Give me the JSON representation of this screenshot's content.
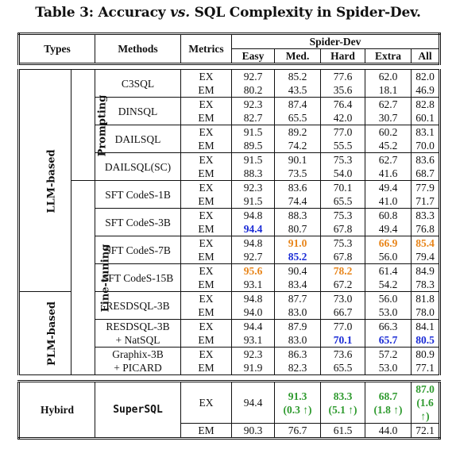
{
  "title": {
    "pre": "Table 3: Accuracy ",
    "vs": "vs.",
    "post": " SQL Complexity in Spider-Dev."
  },
  "header": {
    "types": "Types",
    "methods": "Methods",
    "metrics": "Metrics",
    "group": "Spider-Dev",
    "cols": [
      "Easy",
      "Med.",
      "Hard",
      "Extra",
      "All"
    ]
  },
  "groups": {
    "llm": "LLM-based",
    "prompting": "Prompting",
    "finetuning": "Fine-tuning",
    "plm": "PLM-based",
    "hybird": "Hybird"
  },
  "methods": {
    "c3sql": "C3SQL",
    "dinsql": "DINSQL",
    "dailsql": "DAILSQL",
    "dailsqlsc": "DAILSQL(SC)",
    "codes1b": "SFT CodeS-1B",
    "codes3b": "SFT CodeS-3B",
    "codes7b": "SFT CodeS-7B",
    "codes15b": "SFT CodeS-15B",
    "resdsql": "RESDSQL-3B",
    "resdsqlnat_1": "RESDSQL-3B",
    "resdsqlnat_2": "+ NatSQL",
    "graphix_1": "Graphix-3B",
    "graphix_2": "+ PICARD",
    "supersql": "SuperSQL"
  },
  "metric": {
    "ex": "EX",
    "em": "EM"
  },
  "rows": {
    "c3sql_ex": [
      "92.7",
      "85.2",
      "77.6",
      "62.0",
      "82.0"
    ],
    "c3sql_em": [
      "80.2",
      "43.5",
      "35.6",
      "18.1",
      "46.9"
    ],
    "dinsql_ex": [
      "92.3",
      "87.4",
      "76.4",
      "62.7",
      "82.8"
    ],
    "dinsql_em": [
      "82.7",
      "65.5",
      "42.0",
      "30.7",
      "60.1"
    ],
    "dailsql_ex": [
      "91.5",
      "89.2",
      "77.0",
      "60.2",
      "83.1"
    ],
    "dailsql_em": [
      "89.5",
      "74.2",
      "55.5",
      "45.2",
      "70.0"
    ],
    "dailsqlsc_ex": [
      "91.5",
      "90.1",
      "75.3",
      "62.7",
      "83.6"
    ],
    "dailsqlsc_em": [
      "88.3",
      "73.5",
      "54.0",
      "41.6",
      "68.7"
    ],
    "codes1b_ex": [
      "92.3",
      "83.6",
      "70.1",
      "49.4",
      "77.9"
    ],
    "codes1b_em": [
      "91.5",
      "74.4",
      "65.5",
      "41.0",
      "71.7"
    ],
    "codes3b_ex": [
      "94.8",
      "88.3",
      "75.3",
      "60.8",
      "83.3"
    ],
    "codes3b_em": [
      "94.4",
      "80.7",
      "67.8",
      "49.4",
      "76.8"
    ],
    "codes7b_ex": [
      "94.8",
      "91.0",
      "75.3",
      "66.9",
      "85.4"
    ],
    "codes7b_em": [
      "92.7",
      "85.2",
      "67.8",
      "56.0",
      "79.4"
    ],
    "codes15b_ex": [
      "95.6",
      "90.4",
      "78.2",
      "61.4",
      "84.9"
    ],
    "codes15b_em": [
      "93.1",
      "83.4",
      "67.2",
      "54.2",
      "78.3"
    ],
    "resdsql_ex": [
      "94.8",
      "87.7",
      "73.0",
      "56.0",
      "81.8"
    ],
    "resdsql_em": [
      "94.0",
      "83.0",
      "66.7",
      "53.0",
      "78.0"
    ],
    "resdsqlnat_ex": [
      "94.4",
      "87.9",
      "77.0",
      "66.3",
      "84.1"
    ],
    "resdsqlnat_em": [
      "93.1",
      "83.0",
      "70.1",
      "65.7",
      "80.5"
    ],
    "graphix_ex": [
      "92.3",
      "86.3",
      "73.6",
      "57.2",
      "80.9"
    ],
    "graphix_em": [
      "91.9",
      "82.3",
      "65.5",
      "53.0",
      "77.1"
    ],
    "supersql_ex": [
      "94.4",
      "91.3",
      "83.3",
      "68.7",
      "87.0"
    ],
    "supersql_ex_delta": [
      "",
      "(0.3 ↑)",
      "(5.1 ↑)",
      "(1.8 ↑)",
      "(1.6 ↑)"
    ],
    "supersql_em": [
      "90.3",
      "76.7",
      "61.5",
      "44.0",
      "72.1"
    ]
  },
  "colors": {
    "best": "#1a2bd6",
    "second": "#e8851a",
    "ours": "#2e9a2e"
  }
}
